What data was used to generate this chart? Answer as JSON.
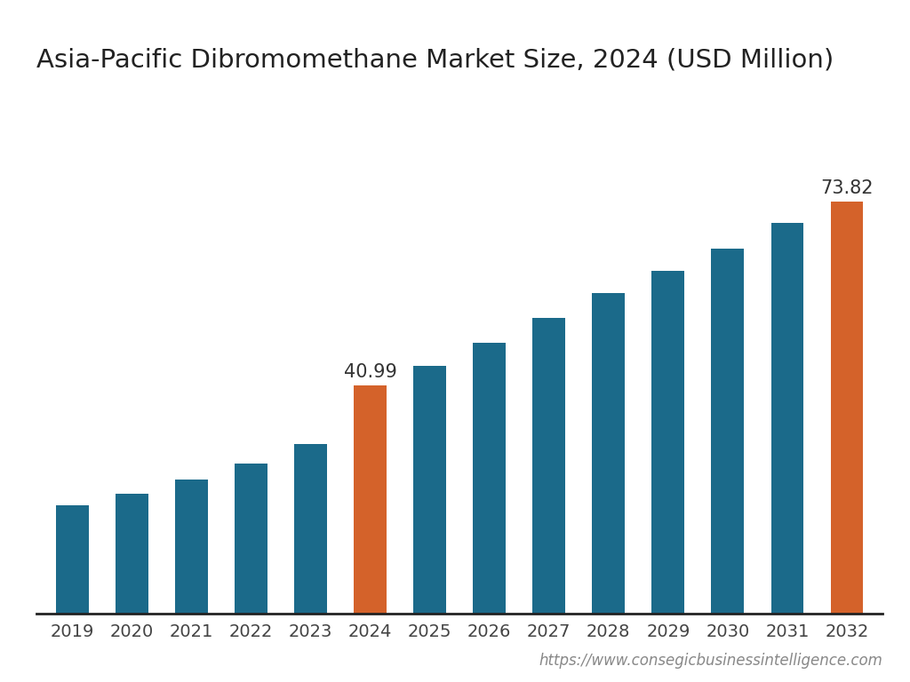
{
  "title": "Asia-Pacific Dibromomethane Market Size, 2024 (USD Million)",
  "categories": [
    "2019",
    "2020",
    "2021",
    "2022",
    "2023",
    "2024",
    "2025",
    "2026",
    "2027",
    "2028",
    "2029",
    "2030",
    "2031",
    "2032"
  ],
  "values": [
    19.5,
    21.5,
    24.0,
    27.0,
    30.5,
    40.99,
    44.5,
    48.5,
    53.0,
    57.5,
    61.5,
    65.5,
    70.0,
    73.82
  ],
  "bar_colors": [
    "#1b6a8a",
    "#1b6a8a",
    "#1b6a8a",
    "#1b6a8a",
    "#1b6a8a",
    "#d4622a",
    "#1b6a8a",
    "#1b6a8a",
    "#1b6a8a",
    "#1b6a8a",
    "#1b6a8a",
    "#1b6a8a",
    "#1b6a8a",
    "#d4622a"
  ],
  "label_bars": [
    5,
    13
  ],
  "label_values": [
    "40.99",
    "73.82"
  ],
  "ylim": [
    0,
    88
  ],
  "background_color": "#ffffff",
  "title_fontsize": 21,
  "tick_fontsize": 14,
  "label_fontsize": 15,
  "watermark": "https://www.consegicbusinessintelligence.com",
  "watermark_fontsize": 12,
  "bar_width": 0.55
}
